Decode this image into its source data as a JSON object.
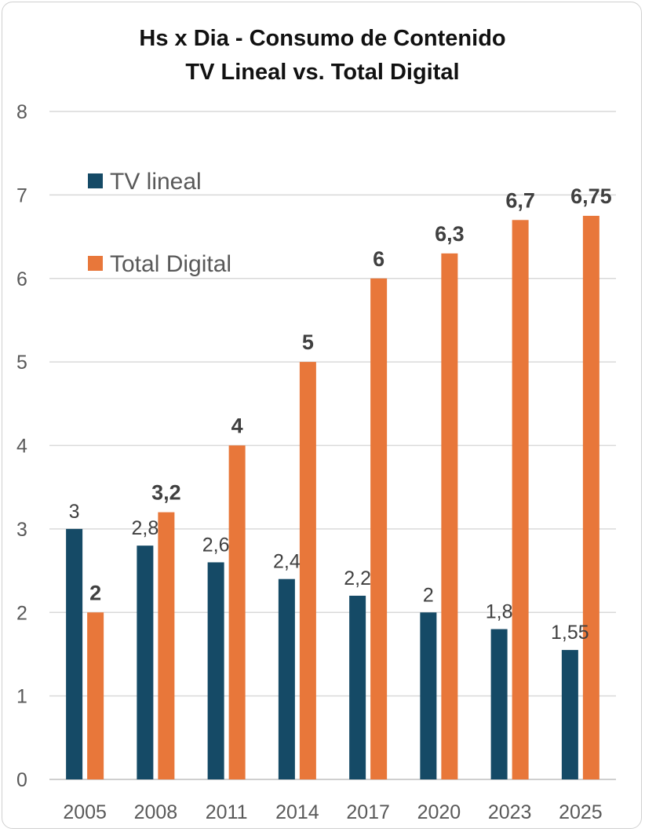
{
  "chart_data": {
    "type": "bar",
    "title": [
      "Hs x Dia - Consumo de Contenido",
      "TV Lineal vs. Total Digital"
    ],
    "categories": [
      "2005",
      "2008",
      "2011",
      "2014",
      "2017",
      "2020",
      "2023",
      "2025"
    ],
    "ylim": [
      0,
      8
    ],
    "yticks": [
      "0",
      "1",
      "2",
      "3",
      "4",
      "5",
      "6",
      "7",
      "8"
    ],
    "grid": true,
    "legend_position": "top-left",
    "series": [
      {
        "name": "TV lineal",
        "color": "#154a66",
        "values": [
          3,
          2.8,
          2.6,
          2.4,
          2.2,
          2,
          1.8,
          1.55
        ],
        "labels": [
          "3",
          "2,8",
          "2,6",
          "2,4",
          "2,2",
          "2",
          "1,8",
          "1,55"
        ]
      },
      {
        "name": "Total Digital",
        "color": "#e8773a",
        "values": [
          2,
          3.2,
          4,
          5,
          6,
          6.3,
          6.7,
          6.75
        ],
        "labels": [
          "2",
          "3,2",
          "4",
          "5",
          "6",
          "6,3",
          "6,7",
          "6,75"
        ]
      }
    ]
  }
}
